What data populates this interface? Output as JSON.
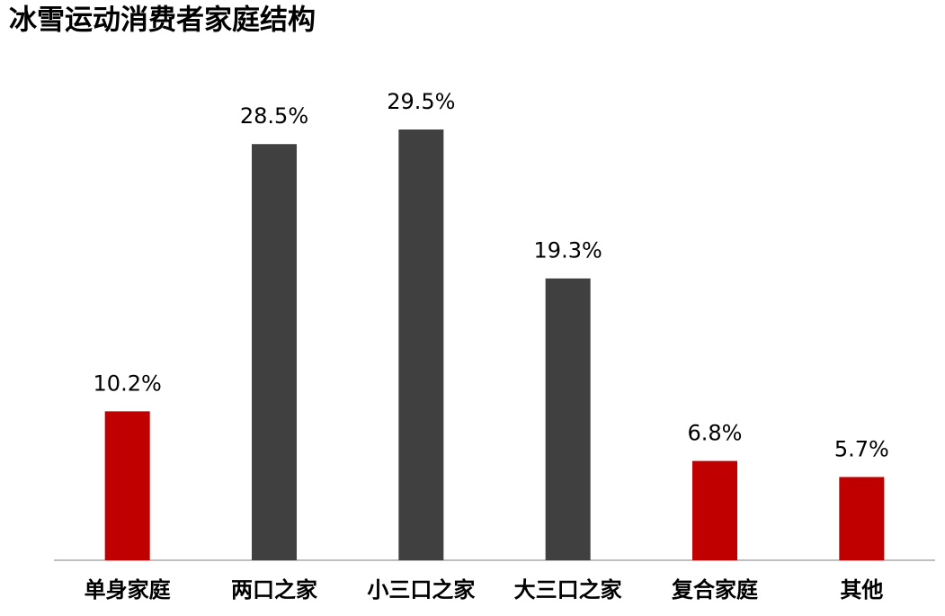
{
  "chart_data": {
    "type": "bar",
    "title": "冰雪运动消费者家庭结构",
    "categories": [
      "单身家庭",
      "两口之家",
      "小三口之家",
      "大三口之家",
      "复合家庭",
      "其他"
    ],
    "values": [
      10.2,
      28.5,
      29.5,
      19.3,
      6.8,
      5.7
    ],
    "value_labels": [
      "10.2%",
      "28.5%",
      "29.5%",
      "19.3%",
      "6.8%",
      "5.7%"
    ],
    "colors": [
      "#c00000",
      "#404040",
      "#404040",
      "#404040",
      "#c00000",
      "#c00000"
    ]
  }
}
